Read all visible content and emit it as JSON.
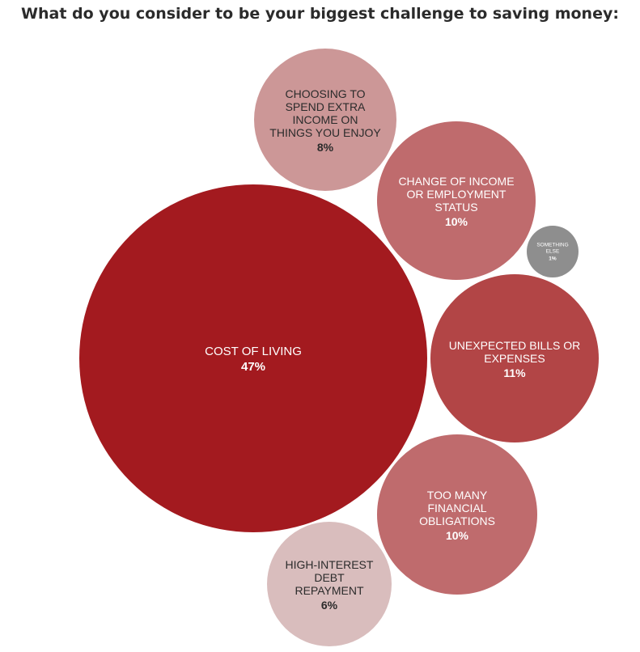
{
  "chart_data": {
    "type": "bubble",
    "title": "What do you consider to be your biggest challenge to saving money:",
    "unit": "%",
    "data": [
      {
        "label": "COST OF LIVING",
        "lines": [
          "COST OF LIVING"
        ],
        "value": 47,
        "value_label": "47%",
        "color": "#a31a1f",
        "text_color": "#ffffff"
      },
      {
        "label": "CHOOSING TO SPEND EXTRA INCOME ON THINGS YOU ENJOY",
        "lines": [
          "CHOOSING TO",
          "SPEND EXTRA",
          "INCOME ON",
          "THINGS YOU ENJOY"
        ],
        "value": 8,
        "value_label": "8%",
        "color": "#cc9797",
        "text_color": "#2b2b2b"
      },
      {
        "label": "CHANGE OF INCOME OR EMPLOYMENT STATUS",
        "lines": [
          "CHANGE OF INCOME",
          "OR EMPLOYMENT",
          "STATUS"
        ],
        "value": 10,
        "value_label": "10%",
        "color": "#bf6b6d",
        "text_color": "#ffffff"
      },
      {
        "label": "SOMETHING ELSE",
        "lines": [
          "SOMETHING",
          "ELSE"
        ],
        "value": 1,
        "value_label": "1%",
        "color": "#8e8e8e",
        "text_color": "#ffffff"
      },
      {
        "label": "UNEXPECTED BILLS OR EXPENSES",
        "lines": [
          "UNEXPECTED BILLS OR",
          "EXPENSES"
        ],
        "value": 11,
        "value_label": "11%",
        "color": "#b24546",
        "text_color": "#ffffff"
      },
      {
        "label": "TOO MANY FINANCIAL OBLIGATIONS",
        "lines": [
          "TOO MANY",
          "FINANCIAL",
          "OBLIGATIONS"
        ],
        "value": 10,
        "value_label": "10%",
        "color": "#bf6b6d",
        "text_color": "#ffffff"
      },
      {
        "label": "HIGH-INTEREST DEBT REPAYMENT",
        "lines": [
          "HIGH-INTEREST",
          "DEBT",
          "REPAYMENT"
        ],
        "value": 6,
        "value_label": "6%",
        "color": "#d9bdbd",
        "text_color": "#2b2b2b"
      }
    ]
  }
}
